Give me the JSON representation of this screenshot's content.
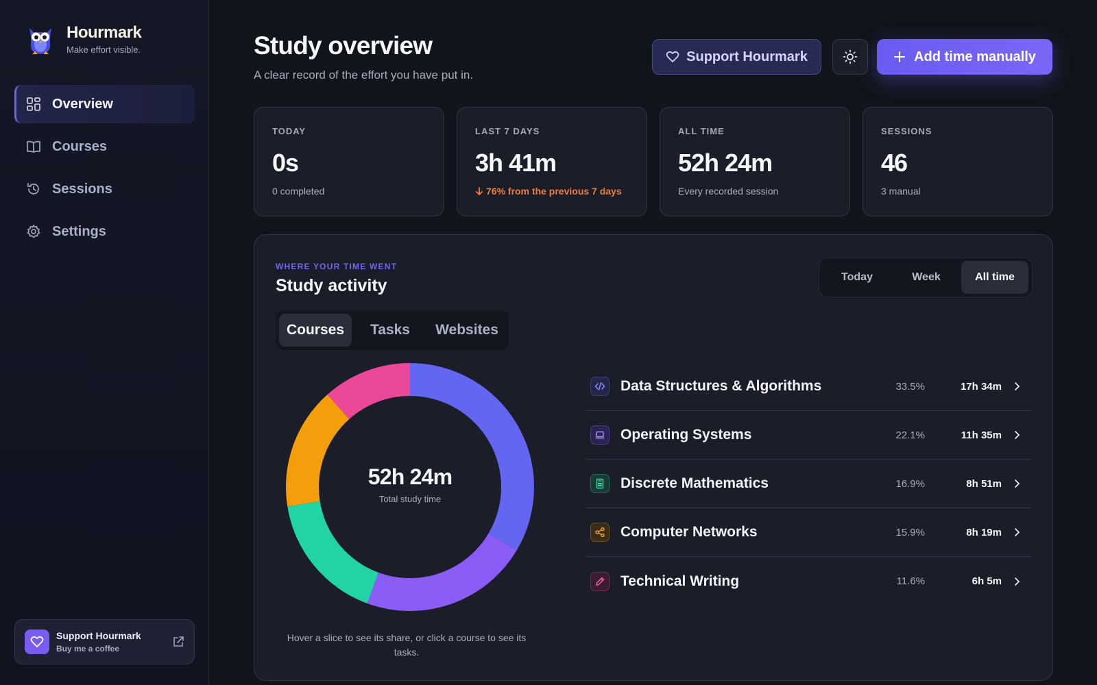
{
  "brand": {
    "name": "Hourmark",
    "tagline": "Make effort visible."
  },
  "sidebar": {
    "items": [
      {
        "label": "Overview",
        "icon": "grid-icon",
        "active": true
      },
      {
        "label": "Courses",
        "icon": "book-icon"
      },
      {
        "label": "Sessions",
        "icon": "history-icon"
      },
      {
        "label": "Settings",
        "icon": "gear-icon"
      }
    ],
    "support": {
      "title": "Support Hourmark",
      "subtitle": "Buy me a coffee"
    }
  },
  "header": {
    "title": "Study overview",
    "subtitle": "A clear record of the effort you have put in.",
    "support_label": "Support Hourmark",
    "add_label": "Add time manually"
  },
  "stats": [
    {
      "label": "TODAY",
      "value": "0s",
      "note": "0 completed"
    },
    {
      "label": "LAST 7 DAYS",
      "value": "3h 41m",
      "note": "76% from the previous 7 days",
      "trend": "down"
    },
    {
      "label": "ALL TIME",
      "value": "52h 24m",
      "note": "Every recorded session"
    },
    {
      "label": "SESSIONS",
      "value": "46",
      "note": "3 manual"
    }
  ],
  "activity": {
    "eyebrow": "WHERE YOUR TIME WENT",
    "title": "Study activity",
    "ranges": [
      "Today",
      "Week",
      "All time"
    ],
    "selected_range": "All time",
    "tabs": [
      "Courses",
      "Tasks",
      "Websites"
    ],
    "selected_tab": "Courses",
    "total": "52h 24m",
    "total_caption": "Total study time",
    "hint": "Hover a slice to see its share, or click a course to see its tasks."
  },
  "courses": [
    {
      "name": "Data Structures & Algorithms",
      "pct": "33.5%",
      "time": "17h 34m",
      "icon": "code-icon",
      "color": "#6366f1"
    },
    {
      "name": "Operating Systems",
      "pct": "22.1%",
      "time": "11h 35m",
      "icon": "laptop-icon",
      "color": "#8b5cf6"
    },
    {
      "name": "Discrete Mathematics",
      "pct": "16.9%",
      "time": "8h 51m",
      "icon": "calculator-icon",
      "color": "#22d3a6"
    },
    {
      "name": "Computer Networks",
      "pct": "15.9%",
      "time": "8h 19m",
      "icon": "share-icon",
      "color": "#f59e0b"
    },
    {
      "name": "Technical Writing",
      "pct": "11.6%",
      "time": "6h 5m",
      "icon": "pencil-icon",
      "color": "#ec4899"
    }
  ],
  "chart_data": {
    "type": "pie",
    "categories": [
      "Data Structures & Algorithms",
      "Operating Systems",
      "Discrete Mathematics",
      "Computer Networks",
      "Technical Writing"
    ],
    "values": [
      33.5,
      22.1,
      16.9,
      15.9,
      11.6
    ],
    "colors": [
      "#6366f1",
      "#8b5cf6",
      "#22d3a6",
      "#f59e0b",
      "#ec4899"
    ],
    "title": "52h 24m",
    "subtitle": "Total study time"
  }
}
